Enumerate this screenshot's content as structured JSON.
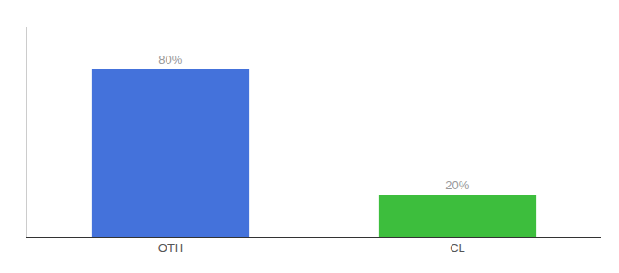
{
  "chart_data": {
    "type": "bar",
    "categories": [
      "OTH",
      "CL"
    ],
    "values": [
      80,
      20
    ],
    "value_labels": [
      "80%",
      "20%"
    ],
    "colors": [
      "#4472db",
      "#3dbe3d"
    ],
    "ylim": [
      0,
      100
    ],
    "data_labels": true,
    "tick_labels": "x",
    "grid": false
  }
}
